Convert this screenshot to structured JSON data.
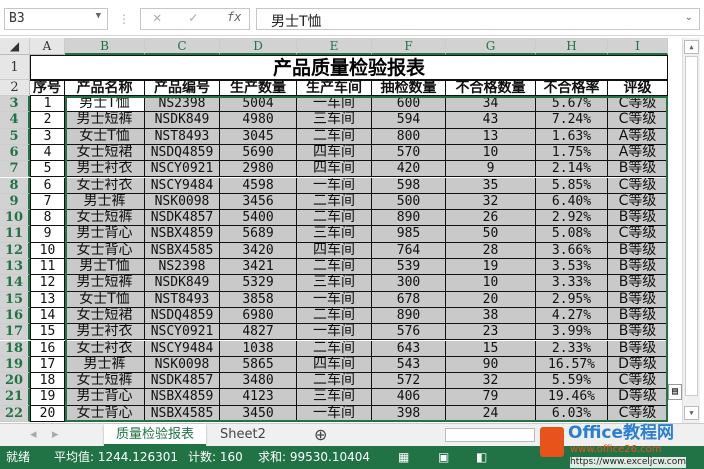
{
  "formula_bar": {
    "name_box": "B3",
    "formula": "男士T恤"
  },
  "columns": [
    "A",
    "B",
    "C",
    "D",
    "E",
    "F",
    "G",
    "H",
    "I"
  ],
  "title": "产品质量检验报表",
  "headers": [
    "序号",
    "产品名称",
    "产品编号",
    "生产数量",
    "生产车间",
    "抽检数量",
    "不合格数量",
    "不合格率",
    "评级"
  ],
  "rows": [
    [
      "1",
      "男士T恤",
      "NS2398",
      "5004",
      "一车间",
      "600",
      "34",
      "5.67%",
      "C等级"
    ],
    [
      "2",
      "男士短裤",
      "NSDK849",
      "4980",
      "三车间",
      "594",
      "43",
      "7.24%",
      "C等级"
    ],
    [
      "3",
      "女士T恤",
      "NST8493",
      "3045",
      "二车间",
      "800",
      "13",
      "1.63%",
      "A等级"
    ],
    [
      "4",
      "女士短裙",
      "NSDQ4859",
      "5690",
      "四车间",
      "570",
      "10",
      "1.75%",
      "A等级"
    ],
    [
      "5",
      "男士衬衣",
      "NSCY0921",
      "2980",
      "四车间",
      "420",
      "9",
      "2.14%",
      "B等级"
    ],
    [
      "6",
      "女士衬衣",
      "NSCY9484",
      "4598",
      "一车间",
      "598",
      "35",
      "5.85%",
      "C等级"
    ],
    [
      "7",
      "男士裤",
      "NSK0098",
      "3456",
      "二车间",
      "500",
      "32",
      "6.40%",
      "C等级"
    ],
    [
      "8",
      "女士短裤",
      "NSDK4857",
      "5400",
      "二车间",
      "890",
      "26",
      "2.92%",
      "B等级"
    ],
    [
      "9",
      "男士背心",
      "NSBX4859",
      "5689",
      "三车间",
      "985",
      "50",
      "5.08%",
      "C等级"
    ],
    [
      "10",
      "女士背心",
      "NSBX4585",
      "3420",
      "四车间",
      "764",
      "28",
      "3.66%",
      "B等级"
    ],
    [
      "11",
      "男士T恤",
      "NS2398",
      "3421",
      "二车间",
      "539",
      "19",
      "3.53%",
      "B等级"
    ],
    [
      "12",
      "男士短裤",
      "NSDK849",
      "5329",
      "三车间",
      "300",
      "10",
      "3.33%",
      "B等级"
    ],
    [
      "13",
      "女士T恤",
      "NST8493",
      "3858",
      "一车间",
      "678",
      "20",
      "2.95%",
      "B等级"
    ],
    [
      "14",
      "女士短裙",
      "NSDQ4859",
      "6980",
      "二车间",
      "890",
      "38",
      "4.27%",
      "B等级"
    ],
    [
      "15",
      "男士衬衣",
      "NSCY0921",
      "4827",
      "一车间",
      "576",
      "23",
      "3.99%",
      "B等级"
    ],
    [
      "16",
      "女士衬衣",
      "NSCY9484",
      "1038",
      "二车间",
      "643",
      "15",
      "2.33%",
      "B等级"
    ],
    [
      "17",
      "男士裤",
      "NSK0098",
      "5865",
      "四车间",
      "543",
      "90",
      "16.57%",
      "D等级"
    ],
    [
      "18",
      "女士短裤",
      "NSDK4857",
      "3480",
      "二车间",
      "572",
      "32",
      "5.59%",
      "C等级"
    ],
    [
      "19",
      "男士背心",
      "NSBX4859",
      "4123",
      "三车间",
      "406",
      "79",
      "19.46%",
      "D等级"
    ],
    [
      "20",
      "女士背心",
      "NSBX4585",
      "3450",
      "一车间",
      "398",
      "24",
      "6.03%",
      "C等级"
    ]
  ],
  "sheet_tabs": [
    {
      "label": "质量检验报表",
      "active": true
    },
    {
      "label": "Sheet2",
      "active": false
    }
  ],
  "status": {
    "ready": "就绪",
    "average": "平均值: 1244.126301",
    "count": "计数: 160",
    "sum": "求和: 99530.10404"
  },
  "watermark": {
    "brand": "Office教程网",
    "url1": "www.office26.com",
    "url2": "https://www.exceljcw.com"
  },
  "colors": {
    "accent": "#217346",
    "selection": "#c9c9c9"
  }
}
